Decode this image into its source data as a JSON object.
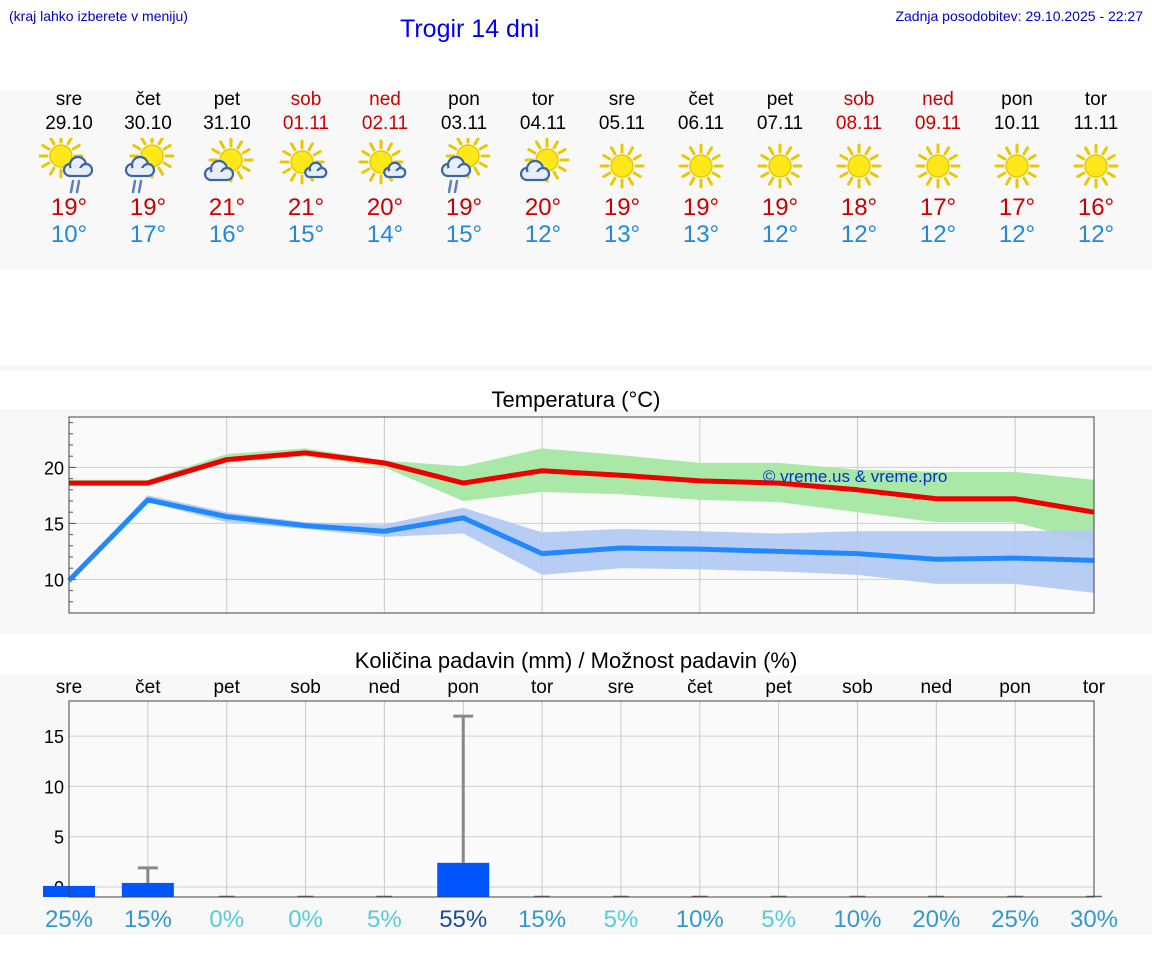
{
  "header": {
    "hint": "(kraj lahko izberete v meniju)",
    "title": "Trogir 14 dni",
    "updated": "Zadnja posodobitev: 29.10.2025 - 22:27"
  },
  "days": [
    {
      "name": "sre",
      "date": "29.10",
      "icon": "sun-cloud-rain-icon",
      "max": "19°",
      "min": "10°",
      "weekend": false
    },
    {
      "name": "čet",
      "date": "30.10",
      "icon": "cloud-sun-rain-icon",
      "max": "19°",
      "min": "17°",
      "weekend": false
    },
    {
      "name": "pet",
      "date": "31.10",
      "icon": "cloud-sun-icon",
      "max": "21°",
      "min": "16°",
      "weekend": false
    },
    {
      "name": "sob",
      "date": "01.11",
      "icon": "sun-small-cloud-icon",
      "max": "21°",
      "min": "15°",
      "weekend": true
    },
    {
      "name": "ned",
      "date": "02.11",
      "icon": "sun-small-cloud-icon",
      "max": "20°",
      "min": "14°",
      "weekend": true
    },
    {
      "name": "pon",
      "date": "03.11",
      "icon": "cloud-sun-rain-icon",
      "max": "19°",
      "min": "15°",
      "weekend": false
    },
    {
      "name": "tor",
      "date": "04.11",
      "icon": "cloud-sun-icon",
      "max": "20°",
      "min": "12°",
      "weekend": false
    },
    {
      "name": "sre",
      "date": "05.11",
      "icon": "sun-icon",
      "max": "19°",
      "min": "13°",
      "weekend": false
    },
    {
      "name": "čet",
      "date": "06.11",
      "icon": "sun-icon",
      "max": "19°",
      "min": "13°",
      "weekend": false
    },
    {
      "name": "pet",
      "date": "07.11",
      "icon": "sun-icon",
      "max": "19°",
      "min": "12°",
      "weekend": false
    },
    {
      "name": "sob",
      "date": "08.11",
      "icon": "sun-icon",
      "max": "18°",
      "min": "12°",
      "weekend": true
    },
    {
      "name": "ned",
      "date": "09.11",
      "icon": "sun-icon",
      "max": "17°",
      "min": "12°",
      "weekend": true
    },
    {
      "name": "pon",
      "date": "10.11",
      "icon": "sun-icon",
      "max": "17°",
      "min": "12°",
      "weekend": false
    },
    {
      "name": "tor",
      "date": "11.11",
      "icon": "sun-icon",
      "max": "16°",
      "min": "12°",
      "weekend": false
    }
  ],
  "colors": {
    "max_line": "#ee0000",
    "max_band": "#aae8a8",
    "min_line": "#2288ff",
    "min_band": "#b0c8f2",
    "bar": "#0055ff",
    "whisker": "#888888",
    "weekend": "#cc0000",
    "prob_low": "#55ccdd",
    "prob_mid": "#3399cc",
    "prob_high": "#1a4c9a"
  },
  "chart_data": [
    {
      "type": "line",
      "title": "Temperatura (°C)",
      "watermark": "© vreme.us & vreme.pro",
      "x": [
        0,
        1,
        2,
        3,
        4,
        5,
        6,
        7,
        8,
        9,
        10,
        11,
        12,
        13
      ],
      "ylim": [
        7,
        24.5
      ],
      "yticks": [
        10,
        15,
        20
      ],
      "series": [
        {
          "name": "max",
          "values": [
            18.6,
            18.6,
            20.7,
            21.3,
            20.4,
            18.6,
            19.7,
            19.3,
            18.8,
            18.6,
            18.0,
            17.2,
            17.2,
            16.0
          ],
          "band_low": [
            18.4,
            18.4,
            20.4,
            21.0,
            20.0,
            17.0,
            17.8,
            17.6,
            17.1,
            16.9,
            16.0,
            15.1,
            15.1,
            13.2
          ],
          "band_high": [
            18.9,
            18.9,
            21.2,
            21.7,
            20.6,
            20.1,
            21.7,
            21.1,
            20.4,
            20.4,
            19.8,
            19.6,
            19.6,
            18.9
          ]
        },
        {
          "name": "min",
          "values": [
            9.9,
            17.1,
            15.6,
            14.8,
            14.3,
            15.5,
            12.3,
            12.8,
            12.7,
            12.5,
            12.3,
            11.8,
            11.9,
            11.7
          ],
          "band_low": [
            9.6,
            16.9,
            15.1,
            14.5,
            13.8,
            14.1,
            10.4,
            11.0,
            10.9,
            10.7,
            10.4,
            9.6,
            9.6,
            8.8
          ],
          "band_high": [
            10.1,
            17.5,
            16.0,
            15.1,
            14.9,
            16.4,
            14.2,
            14.5,
            14.3,
            14.1,
            14.3,
            14.3,
            14.3,
            14.4
          ]
        }
      ]
    },
    {
      "type": "bar",
      "title": "Količina padavin (mm) / Možnost padavin (%)",
      "categories": [
        "sre",
        "čet",
        "pet",
        "sob",
        "ned",
        "pon",
        "tor",
        "sre",
        "čet",
        "pet",
        "sob",
        "ned",
        "pon",
        "tor"
      ],
      "values": [
        0.1,
        0.4,
        0,
        0,
        0,
        2.4,
        0,
        0,
        0,
        0,
        0,
        0,
        0,
        0
      ],
      "whisker_max": [
        0.1,
        1.9,
        0,
        0,
        0,
        17.0,
        0,
        0,
        0,
        0,
        0,
        0,
        0,
        0
      ],
      "ylim": [
        -1,
        18.5
      ],
      "yticks": [
        0,
        5,
        10,
        15
      ],
      "probabilities": [
        "25%",
        "15%",
        "0%",
        "0%",
        "5%",
        "55%",
        "15%",
        "5%",
        "10%",
        "5%",
        "10%",
        "20%",
        "25%",
        "30%"
      ],
      "probability_values": [
        25,
        15,
        0,
        0,
        5,
        55,
        15,
        5,
        10,
        5,
        10,
        20,
        25,
        30
      ]
    }
  ]
}
